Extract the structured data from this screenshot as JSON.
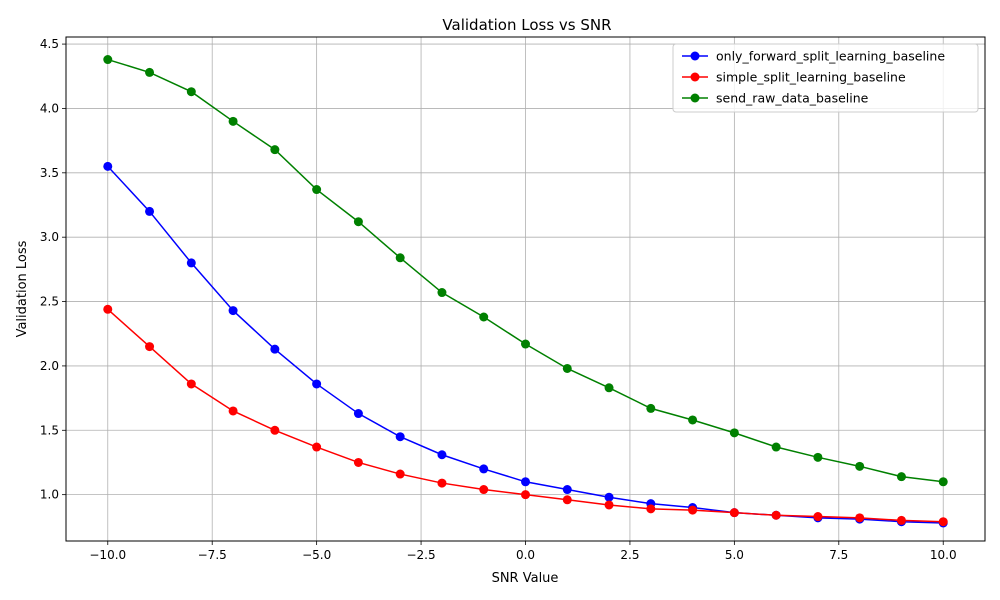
{
  "chart_data": {
    "type": "line",
    "title": "Validation Loss vs SNR",
    "xlabel": "SNR Value",
    "ylabel": "Validation Loss",
    "xlim": [
      -11.0,
      11.0
    ],
    "ylim": [
      0.64,
      4.555
    ],
    "xticks": [
      -10.0,
      -7.5,
      -5.0,
      -2.5,
      0.0,
      2.5,
      5.0,
      7.5,
      10.0
    ],
    "xtick_labels": [
      "−10.0",
      "−7.5",
      "−5.0",
      "−2.5",
      "0.0",
      "2.5",
      "5.0",
      "7.5",
      "10.0"
    ],
    "yticks": [
      1.0,
      1.5,
      2.0,
      2.5,
      3.0,
      3.5,
      4.0,
      4.5
    ],
    "ytick_labels": [
      "1.0",
      "1.5",
      "2.0",
      "2.5",
      "3.0",
      "3.5",
      "4.0",
      "4.5"
    ],
    "grid": true,
    "legend_position": "top-right",
    "x": [
      -10,
      -9,
      -8,
      -7,
      -6,
      -5,
      -4,
      -3,
      -2,
      -1,
      0,
      1,
      2,
      3,
      4,
      5,
      6,
      7,
      8,
      9,
      10
    ],
    "series": [
      {
        "name": "only_forward_split_learning_baseline",
        "color": "#0000ff",
        "marker": "circle",
        "values": [
          3.55,
          3.2,
          2.8,
          2.43,
          2.13,
          1.86,
          1.63,
          1.45,
          1.31,
          1.2,
          1.1,
          1.04,
          0.98,
          0.93,
          0.9,
          0.86,
          0.84,
          0.82,
          0.81,
          0.79,
          0.78
        ]
      },
      {
        "name": "simple_split_learning_baseline",
        "color": "#ff0000",
        "marker": "circle",
        "values": [
          2.44,
          2.15,
          1.86,
          1.65,
          1.5,
          1.37,
          1.25,
          1.16,
          1.09,
          1.04,
          1.0,
          0.96,
          0.92,
          0.89,
          0.88,
          0.86,
          0.84,
          0.83,
          0.82,
          0.8,
          0.79
        ]
      },
      {
        "name": "send_raw_data_baseline",
        "color": "#008000",
        "marker": "circle",
        "values": [
          4.38,
          4.28,
          4.13,
          3.9,
          3.68,
          3.37,
          3.12,
          2.84,
          2.57,
          2.38,
          2.17,
          1.98,
          1.83,
          1.67,
          1.58,
          1.48,
          1.37,
          1.29,
          1.22,
          1.14,
          1.1
        ]
      }
    ]
  }
}
